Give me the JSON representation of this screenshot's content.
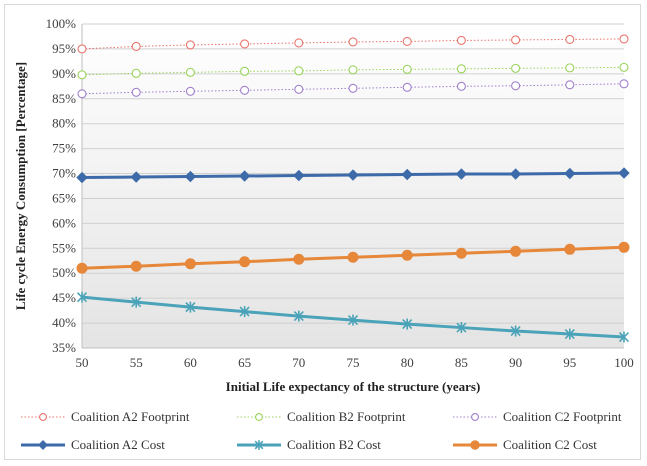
{
  "chart_data": {
    "type": "line",
    "title": "",
    "xlabel": "Initial Life expectancy of the structure (years)",
    "ylabel": "Life cycle Energy Consumption [Percentage]",
    "x": [
      50,
      55,
      60,
      65,
      70,
      75,
      80,
      85,
      90,
      95,
      100
    ],
    "x_tick_labels": [
      "50",
      "55",
      "60",
      "65",
      "70",
      "75",
      "80",
      "85",
      "90",
      "95",
      "100"
    ],
    "ylim": [
      35,
      100
    ],
    "y_ticks": [
      35,
      40,
      45,
      50,
      55,
      60,
      65,
      70,
      75,
      80,
      85,
      90,
      95,
      100
    ],
    "y_tick_labels": [
      "35%",
      "40%",
      "45%",
      "50%",
      "55%",
      "60%",
      "65%",
      "70%",
      "75%",
      "80%",
      "85%",
      "90%",
      "95%",
      "100%"
    ],
    "grid": "horizontal",
    "legend_position": "bottom",
    "series": [
      {
        "name": "Coalition A2 Footprint",
        "color": "#e8736b",
        "marker": "circle-open",
        "style": "dotted",
        "values": [
          95.0,
          95.5,
          95.8,
          96.0,
          96.2,
          96.4,
          96.5,
          96.7,
          96.8,
          96.9,
          97.0
        ]
      },
      {
        "name": "Coalition B2 Footprint",
        "color": "#9bd35e",
        "marker": "circle-open",
        "style": "dotted",
        "values": [
          89.8,
          90.1,
          90.3,
          90.5,
          90.6,
          90.8,
          90.9,
          91.0,
          91.1,
          91.2,
          91.3
        ]
      },
      {
        "name": "Coalition C2 Footprint",
        "color": "#a07fcc",
        "marker": "circle-open",
        "style": "dotted",
        "values": [
          86.0,
          86.3,
          86.5,
          86.7,
          86.9,
          87.1,
          87.3,
          87.5,
          87.6,
          87.8,
          88.0
        ]
      },
      {
        "name": "Coalition A2 Cost",
        "color": "#3d6aa8",
        "marker": "diamond",
        "style": "solid",
        "values": [
          69.2,
          69.3,
          69.4,
          69.5,
          69.6,
          69.7,
          69.8,
          69.9,
          69.9,
          70.0,
          70.1
        ]
      },
      {
        "name": "Coalition B2 Cost",
        "color": "#4aa3b8",
        "marker": "star",
        "style": "solid",
        "values": [
          45.2,
          44.2,
          43.2,
          42.3,
          41.4,
          40.6,
          39.8,
          39.1,
          38.4,
          37.8,
          37.2
        ]
      },
      {
        "name": "Coalition C2 Cost",
        "color": "#e6873a",
        "marker": "circle-filled",
        "style": "solid",
        "values": [
          51.0,
          51.4,
          51.9,
          52.3,
          52.8,
          53.2,
          53.6,
          54.0,
          54.4,
          54.8,
          55.2
        ]
      }
    ]
  }
}
